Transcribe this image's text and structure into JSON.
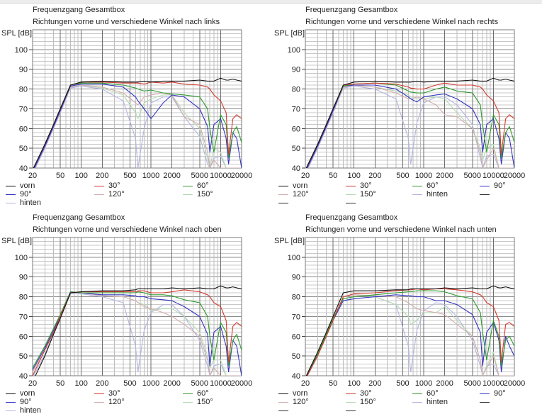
{
  "chart_data": [
    {
      "type": "line",
      "title": "Frequenzgang Gesamtbox",
      "subtitle": "Richtungen vorne und verschiedene Winkel nach links",
      "ylabel": "SPL [dB]",
      "xscale": "log",
      "xlim": [
        20,
        20000
      ],
      "ylim": [
        40,
        110
      ],
      "yticks": [
        40,
        50,
        60,
        70,
        80,
        90,
        100
      ],
      "xticks": [
        20,
        50,
        100,
        200,
        500,
        1000,
        2000,
        5000,
        10000,
        20000
      ],
      "grid": true,
      "legend_placement": "bottom",
      "legend_columns": 3,
      "extra_legend_lines": 0,
      "x": [
        20,
        30,
        40,
        50,
        70,
        100,
        200,
        400,
        600,
        650,
        800,
        1000,
        1500,
        2000,
        3000,
        5000,
        6500,
        7000,
        8000,
        10000,
        12000,
        13000,
        15000,
        17000,
        20000
      ],
      "series": [
        {
          "name": "vorn",
          "color": "#111111",
          "values": [
            39,
            52,
            62,
            70,
            82,
            83.5,
            84,
            83.5,
            83.5,
            83.5,
            84,
            83.5,
            84,
            84,
            84,
            84.5,
            84,
            84,
            84,
            85.5,
            84.5,
            84.5,
            85,
            84.5,
            84
          ]
        },
        {
          "name": "30°",
          "color": "#d23a2e",
          "values": [
            39,
            52,
            62,
            70,
            82,
            83.5,
            83.5,
            83,
            83,
            83,
            82.5,
            83.5,
            83,
            83.5,
            82.5,
            82,
            81,
            80,
            77,
            74,
            68,
            47,
            65,
            67,
            65
          ]
        },
        {
          "name": "60°",
          "color": "#2f9a2f",
          "values": [
            39,
            52,
            62,
            70,
            82,
            83,
            83,
            82,
            80.5,
            80,
            79,
            79.5,
            78,
            77.5,
            77,
            76,
            70,
            60,
            48,
            67,
            62,
            45,
            58,
            61,
            53
          ]
        },
        {
          "name": "90°",
          "color": "#3434c0",
          "values": [
            38,
            51,
            61,
            69,
            81.5,
            82.5,
            82.5,
            81,
            76,
            74,
            70,
            65,
            73,
            77,
            76,
            70,
            61,
            48,
            62,
            65,
            55,
            42,
            58,
            55,
            40
          ]
        },
        {
          "name": "120°",
          "color": "#d2adad",
          "values": [
            38,
            51,
            61,
            69,
            81,
            82,
            81,
            78,
            73,
            72,
            76,
            77,
            78,
            77,
            66,
            62,
            48,
            40,
            44,
            40,
            40,
            40,
            40,
            40,
            40
          ]
        },
        {
          "name": "150°",
          "color": "#b3d9b3",
          "values": [
            38,
            51,
            61,
            69,
            81,
            82,
            80.5,
            77,
            68,
            65,
            73,
            75,
            77,
            77,
            68,
            60,
            45,
            40,
            50,
            48,
            40,
            40,
            40,
            40,
            40
          ]
        },
        {
          "name": "hinten",
          "color": "#b4b4e2",
          "values": [
            37,
            50,
            60,
            68,
            80.5,
            81.5,
            80,
            74,
            55,
            40,
            60,
            73,
            76,
            76,
            66,
            56,
            42,
            40,
            45,
            46,
            40,
            40,
            40,
            40,
            40
          ]
        }
      ]
    },
    {
      "type": "line",
      "title": "Frequenzgang Gesamtbox",
      "subtitle": "Richtungen vorne und verschiedene Winkel nach rechts",
      "ylabel": "SPL [dB]",
      "xscale": "log",
      "xlim": [
        20,
        20000
      ],
      "ylim": [
        40,
        110
      ],
      "yticks": [
        40,
        50,
        60,
        70,
        80,
        90,
        100
      ],
      "xticks": [
        20,
        50,
        100,
        200,
        500,
        1000,
        2000,
        5000,
        10000,
        20000
      ],
      "grid": true,
      "legend_placement": "bottom",
      "legend_columns": 4,
      "extra_legend_lines": 3,
      "x": [
        20,
        30,
        40,
        50,
        70,
        100,
        200,
        400,
        600,
        650,
        800,
        1000,
        1500,
        2000,
        3000,
        5000,
        6500,
        7000,
        8000,
        10000,
        12000,
        13000,
        15000,
        17000,
        20000
      ],
      "series": [
        {
          "name": "vorn",
          "color": "#111111",
          "values": [
            39,
            52,
            62,
            70,
            82,
            83.5,
            84,
            83.5,
            83.5,
            83.5,
            84,
            83.5,
            84,
            84,
            84,
            84.5,
            84,
            84,
            84,
            85.5,
            84.5,
            84.5,
            85,
            84.5,
            84
          ]
        },
        {
          "name": "30°",
          "color": "#d23a2e",
          "values": [
            39,
            52,
            62,
            70,
            82,
            82.5,
            83,
            82.5,
            81,
            80.5,
            80,
            80,
            82,
            83,
            82,
            82,
            81,
            80,
            77,
            74,
            68,
            47,
            65,
            67,
            65
          ]
        },
        {
          "name": "60°",
          "color": "#2f9a2f",
          "values": [
            39,
            52,
            62,
            70,
            81.5,
            82.5,
            83,
            82,
            79,
            78.5,
            78,
            78,
            80,
            81,
            79,
            78,
            72,
            62,
            48,
            67,
            62,
            45,
            58,
            61,
            53
          ]
        },
        {
          "name": "90°",
          "color": "#3434c0",
          "values": [
            38,
            51,
            61,
            69,
            81.5,
            82,
            82,
            80,
            76,
            75,
            73.5,
            76,
            77,
            77.5,
            75,
            70,
            62,
            48,
            62,
            65,
            55,
            42,
            58,
            55,
            40
          ]
        },
        {
          "name": "120°",
          "color": "#d2adad",
          "values": [
            38,
            51,
            61,
            69,
            81,
            82,
            81,
            78,
            75,
            75,
            76,
            75,
            72,
            67,
            66,
            60,
            48,
            40,
            44,
            50,
            40,
            40,
            40,
            40,
            40
          ]
        },
        {
          "name": "150°",
          "color": "#b3d9b3",
          "values": [
            38,
            51,
            61,
            69,
            81,
            82,
            81,
            79,
            77,
            76,
            75,
            75,
            76,
            75,
            68,
            60,
            50,
            44,
            50,
            52,
            40,
            40,
            40,
            40,
            40
          ]
        },
        {
          "name": "hinten",
          "color": "#b4b4e2",
          "values": [
            37,
            50,
            60,
            68,
            80.5,
            81.5,
            80,
            75,
            55,
            42,
            63,
            73,
            76,
            76,
            72,
            62,
            45,
            40,
            46,
            47,
            40,
            40,
            40,
            40,
            40
          ]
        }
      ]
    },
    {
      "type": "line",
      "title": "Frequenzgang Gesamtbox",
      "subtitle": "Richtungen vorne und verschiedene Winkel nach oben",
      "ylabel": "SPL [dB]",
      "xscale": "log",
      "xlim": [
        20,
        20000
      ],
      "ylim": [
        40,
        110
      ],
      "yticks": [
        40,
        50,
        60,
        70,
        80,
        90,
        100
      ],
      "xticks": [
        20,
        50,
        100,
        200,
        500,
        1000,
        2000,
        5000,
        10000,
        20000
      ],
      "grid": true,
      "legend_placement": "bottom",
      "legend_columns": 3,
      "extra_legend_lines": 0,
      "x": [
        20,
        30,
        40,
        50,
        70,
        100,
        200,
        400,
        600,
        650,
        800,
        1000,
        1500,
        2000,
        3000,
        5000,
        6500,
        7000,
        8000,
        10000,
        12000,
        13000,
        15000,
        17000,
        20000
      ],
      "series": [
        {
          "name": "vorn",
          "color": "#111111",
          "values": [
            37,
            50,
            61,
            69,
            82,
            82.5,
            83,
            83,
            83.5,
            84,
            84,
            84,
            84,
            84.5,
            84,
            84.5,
            84,
            84,
            84,
            85.5,
            84.5,
            84.5,
            85,
            84.5,
            84
          ]
        },
        {
          "name": "30°",
          "color": "#d23a2e",
          "values": [
            40,
            53,
            62,
            70,
            82,
            82.5,
            82.5,
            82.5,
            82.5,
            83,
            83,
            82,
            82,
            82.5,
            83.5,
            82.5,
            81,
            80,
            77,
            75,
            68,
            47,
            65,
            67,
            65
          ]
        },
        {
          "name": "60°",
          "color": "#2f9a2f",
          "values": [
            44,
            55,
            64,
            71,
            82.5,
            82,
            82,
            82,
            82,
            82.5,
            82,
            81,
            81,
            80.5,
            78.5,
            77,
            70,
            60,
            48,
            67,
            62,
            45,
            58,
            61,
            53
          ]
        },
        {
          "name": "90°",
          "color": "#3434c0",
          "values": [
            43,
            54,
            63,
            71,
            82.5,
            82,
            81,
            81,
            80.5,
            80,
            80,
            79,
            78.5,
            78,
            75,
            70,
            61,
            45,
            62,
            65,
            55,
            42,
            58,
            55,
            40
          ]
        },
        {
          "name": "120°",
          "color": "#d2adad",
          "values": [
            42,
            53,
            62,
            70,
            82,
            82,
            80.5,
            80,
            78,
            77,
            75,
            74,
            72,
            70,
            66,
            60,
            48,
            40,
            44,
            40,
            40,
            40,
            40,
            40,
            40
          ]
        },
        {
          "name": "150°",
          "color": "#b3d9b3",
          "values": [
            42,
            53,
            62,
            70,
            82,
            82,
            80.5,
            80,
            78,
            77,
            76,
            73,
            74,
            74,
            70,
            62,
            50,
            44,
            48,
            48,
            40,
            40,
            40,
            40,
            40
          ]
        },
        {
          "name": "hinten",
          "color": "#b4b4e2",
          "values": [
            39,
            51,
            61,
            69,
            81.5,
            81.5,
            80,
            77,
            55,
            42,
            63,
            72,
            76,
            76,
            70,
            58,
            45,
            40,
            45,
            46,
            40,
            40,
            40,
            40,
            40
          ]
        }
      ]
    },
    {
      "type": "line",
      "title": "Frequenzgang Gesamtbox",
      "subtitle": "Richtungen vorne und verschiedene Winkel nach unten",
      "ylabel": "SPL [dB]",
      "xscale": "log",
      "xlim": [
        20,
        20000
      ],
      "ylim": [
        40,
        110
      ],
      "yticks": [
        40,
        50,
        60,
        70,
        80,
        90,
        100
      ],
      "xticks": [
        20,
        50,
        100,
        200,
        500,
        1000,
        2000,
        5000,
        10000,
        20000
      ],
      "grid": true,
      "legend_placement": "bottom",
      "legend_columns": 4,
      "extra_legend_lines": 3,
      "x": [
        20,
        30,
        40,
        50,
        70,
        100,
        200,
        400,
        600,
        650,
        800,
        1000,
        1500,
        2000,
        3000,
        5000,
        6500,
        7000,
        8000,
        10000,
        12000,
        13000,
        15000,
        17000,
        20000
      ],
      "series": [
        {
          "name": "vorn",
          "color": "#111111",
          "values": [
            39,
            52,
            62,
            70,
            82,
            83,
            83,
            83.5,
            83.5,
            84,
            84,
            84,
            84,
            84.5,
            84,
            84.5,
            84,
            84,
            84,
            85.5,
            84.5,
            84.5,
            85,
            84.5,
            84
          ]
        },
        {
          "name": "30°",
          "color": "#d23a2e",
          "values": [
            38,
            50,
            60,
            68,
            80,
            81.5,
            82,
            83,
            83.5,
            83.5,
            84,
            83.5,
            84,
            84,
            83.5,
            82.5,
            81,
            80,
            77,
            75,
            68,
            47,
            66,
            67,
            65
          ]
        },
        {
          "name": "60°",
          "color": "#2f9a2f",
          "values": [
            39,
            51,
            61,
            69,
            79,
            80,
            81,
            82,
            82.5,
            82.5,
            83,
            83,
            83,
            82.5,
            80.5,
            79,
            72,
            62,
            48,
            68,
            60,
            45,
            58,
            60,
            55
          ]
        },
        {
          "name": "90°",
          "color": "#3434c0",
          "values": [
            38,
            51,
            61,
            68,
            78,
            79,
            80,
            81,
            80.5,
            80.5,
            80,
            80,
            78,
            78,
            76,
            71,
            62,
            45,
            62,
            67,
            58,
            42,
            60,
            55,
            50
          ]
        },
        {
          "name": "120°",
          "color": "#d2adad",
          "values": [
            38,
            51,
            61,
            69,
            80,
            81,
            80.5,
            80,
            77,
            76,
            74,
            73,
            72,
            71,
            66,
            60,
            48,
            40,
            44,
            50,
            40,
            40,
            40,
            40,
            40
          ]
        },
        {
          "name": "150°",
          "color": "#b3d9b3",
          "values": [
            38,
            51,
            61,
            69,
            80,
            81,
            80,
            76,
            70,
            66,
            68,
            72,
            72,
            75,
            68,
            60,
            48,
            40,
            45,
            52,
            40,
            40,
            40,
            40,
            40
          ]
        },
        {
          "name": "hinten",
          "color": "#b4b4e2",
          "values": [
            38,
            51,
            61,
            69,
            80,
            81,
            80,
            76,
            55,
            42,
            63,
            73,
            77,
            76,
            70,
            58,
            45,
            40,
            45,
            46,
            40,
            40,
            40,
            40,
            40
          ]
        }
      ]
    }
  ]
}
